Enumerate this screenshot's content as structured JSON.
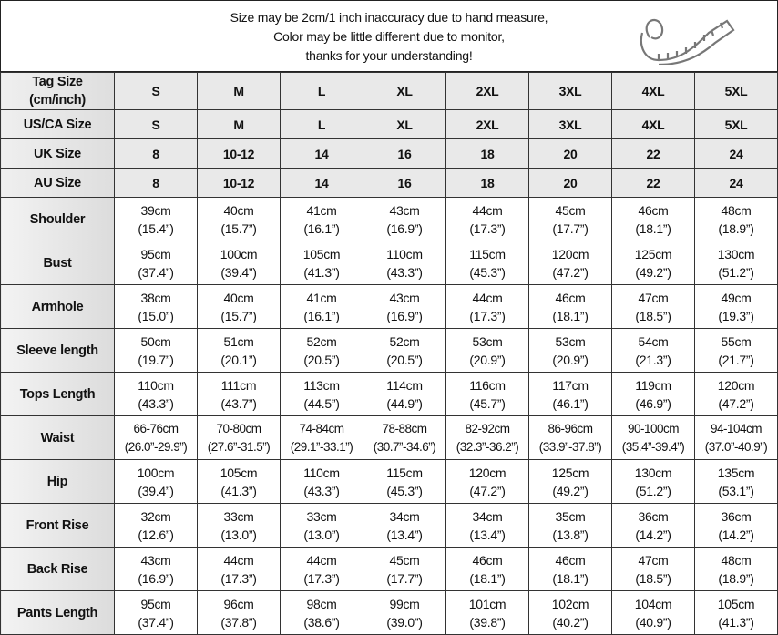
{
  "notice": {
    "lines": [
      "Size may be 2cm/1 inch inaccuracy due to hand measure,",
      "Color may be little different due to monitor,",
      "thanks for your understanding!"
    ],
    "icon": "measuring-tape-icon"
  },
  "size_rows": [
    {
      "label": "Tag Size (cm/inch)",
      "values": [
        "S",
        "M",
        "L",
        "XL",
        "2XL",
        "3XL",
        "4XL",
        "5XL"
      ]
    },
    {
      "label": "US/CA Size",
      "values": [
        "S",
        "M",
        "L",
        "XL",
        "2XL",
        "3XL",
        "4XL",
        "5XL"
      ]
    },
    {
      "label": "UK Size",
      "values": [
        "8",
        "10-12",
        "14",
        "16",
        "18",
        "20",
        "22",
        "24"
      ]
    },
    {
      "label": "AU Size",
      "values": [
        "8",
        "10-12",
        "14",
        "16",
        "18",
        "20",
        "22",
        "24"
      ]
    }
  ],
  "measure_rows": [
    {
      "label": "Shoulder",
      "cm": [
        "39cm",
        "40cm",
        "41cm",
        "43cm",
        "44cm",
        "45cm",
        "46cm",
        "48cm"
      ],
      "inch": [
        "(15.4”)",
        "(15.7”)",
        "(16.1”)",
        "(16.9”)",
        "(17.3”)",
        "(17.7”)",
        "(18.1”)",
        "(18.9”)"
      ]
    },
    {
      "label": "Bust",
      "cm": [
        "95cm",
        "100cm",
        "105cm",
        "110cm",
        "115cm",
        "120cm",
        "125cm",
        "130cm"
      ],
      "inch": [
        "(37.4”)",
        "(39.4”)",
        "(41.3”)",
        "(43.3”)",
        "(45.3”)",
        "(47.2”)",
        "(49.2”)",
        "(51.2”)"
      ]
    },
    {
      "label": "Armhole",
      "cm": [
        "38cm",
        "40cm",
        "41cm",
        "43cm",
        "44cm",
        "46cm",
        "47cm",
        "49cm"
      ],
      "inch": [
        "(15.0”)",
        "(15.7”)",
        "(16.1”)",
        "(16.9”)",
        "(17.3”)",
        "(18.1”)",
        "(18.5”)",
        "(19.3”)"
      ]
    },
    {
      "label": "Sleeve length",
      "cm": [
        "50cm",
        "51cm",
        "52cm",
        "52cm",
        "53cm",
        "53cm",
        "54cm",
        "55cm"
      ],
      "inch": [
        "(19.7”)",
        "(20.1”)",
        "(20.5”)",
        "(20.5”)",
        "(20.9”)",
        "(20.9”)",
        "(21.3”)",
        "(21.7”)"
      ]
    },
    {
      "label": "Tops Length",
      "cm": [
        "110cm",
        "111cm",
        "113cm",
        "114cm",
        "116cm",
        "117cm",
        "119cm",
        "120cm"
      ],
      "inch": [
        "(43.3”)",
        "(43.7”)",
        "(44.5”)",
        "(44.9”)",
        "(45.7”)",
        "(46.1”)",
        "(46.9”)",
        "(47.2”)"
      ]
    },
    {
      "label": "Waist",
      "cm": [
        "66-76cm",
        "70-80cm",
        "74-84cm",
        "78-88cm",
        "82-92cm",
        "86-96cm",
        "90-100cm",
        "94-104cm"
      ],
      "inch": [
        "(26.0”-29.9”)",
        "(27.6”-31.5”)",
        "(29.1”-33.1”)",
        "(30.7”-34.6”)",
        "(32.3”-36.2”)",
        "(33.9”-37.8”)",
        "(35.4”-39.4”)",
        "(37.0”-40.9”)"
      ]
    },
    {
      "label": "Hip",
      "cm": [
        "100cm",
        "105cm",
        "110cm",
        "115cm",
        "120cm",
        "125cm",
        "130cm",
        "135cm"
      ],
      "inch": [
        "(39.4”)",
        "(41.3”)",
        "(43.3”)",
        "(45.3”)",
        "(47.2”)",
        "(49.2”)",
        "(51.2”)",
        "(53.1”)"
      ]
    },
    {
      "label": "Front Rise",
      "cm": [
        "32cm",
        "33cm",
        "33cm",
        "34cm",
        "34cm",
        "35cm",
        "36cm",
        "36cm"
      ],
      "inch": [
        "(12.6”)",
        "(13.0”)",
        "(13.0”)",
        "(13.4”)",
        "(13.4”)",
        "(13.8”)",
        "(14.2”)",
        "(14.2”)"
      ]
    },
    {
      "label": "Back Rise",
      "cm": [
        "43cm",
        "44cm",
        "44cm",
        "45cm",
        "46cm",
        "46cm",
        "47cm",
        "48cm"
      ],
      "inch": [
        "(16.9”)",
        "(17.3”)",
        "(17.3”)",
        "(17.7”)",
        "(18.1”)",
        "(18.1”)",
        "(18.5”)",
        "(18.9”)"
      ]
    },
    {
      "label": "Pants Length",
      "cm": [
        "95cm",
        "96cm",
        "98cm",
        "99cm",
        "101cm",
        "102cm",
        "104cm",
        "105cm"
      ],
      "inch": [
        "(37.4”)",
        "(37.8”)",
        "(38.6”)",
        "(39.0”)",
        "(39.8”)",
        "(40.2”)",
        "(40.9”)",
        "(41.3”)"
      ]
    }
  ]
}
